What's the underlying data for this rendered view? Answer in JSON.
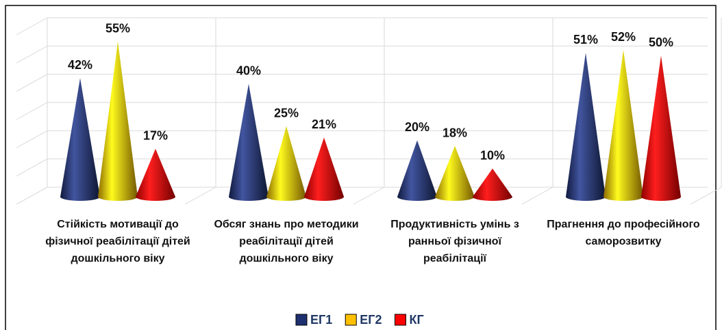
{
  "chart_data": {
    "type": "bar",
    "categories": [
      "Стійкість мотивації до фізичної реабілітації дітей дошкільного віку",
      "Обсяг знань про методики реабілітації дітей дошкільного віку",
      "Продуктивність умінь з ранньої фізичної реабілітації",
      "Прагнення до професійного саморозвитку"
    ],
    "series": [
      {
        "name": "ЕГ1",
        "color": "#1f3070",
        "values": [
          42,
          40,
          20,
          51
        ],
        "value_labels": [
          "42%",
          "40%",
          "20%",
          "51%"
        ]
      },
      {
        "name": "ЕГ2",
        "color": "#ffc000",
        "values": [
          55,
          25,
          18,
          52
        ],
        "value_labels": [
          "55%",
          "25%",
          "18%",
          "52%"
        ]
      },
      {
        "name": "КГ",
        "color": "#ff0000",
        "values": [
          17,
          21,
          10,
          50
        ],
        "value_labels": [
          "17%",
          "21%",
          "10%",
          "50%"
        ]
      }
    ],
    "ylim": [
      0,
      60
    ],
    "yticks": [
      0,
      10,
      20,
      30,
      40,
      50,
      60
    ],
    "grid": true,
    "legend": "bottom"
  }
}
